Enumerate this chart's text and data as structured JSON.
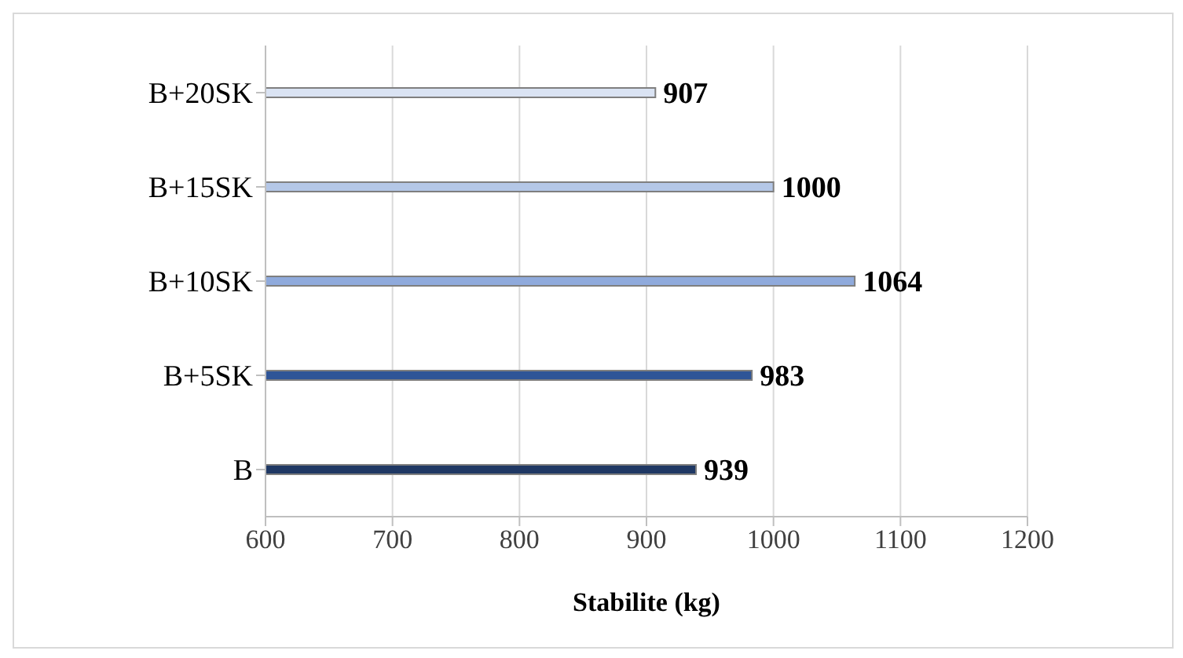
{
  "chart_data": {
    "type": "bar",
    "orientation": "horizontal",
    "categories": [
      "B+20SK",
      "B+15SK",
      "B+10SK",
      "B+5SK",
      "B"
    ],
    "values": [
      907,
      1000,
      1064,
      983,
      939
    ],
    "colors": [
      "#dae3f3",
      "#b4c7e7",
      "#8faadc",
      "#2f5597",
      "#1f3864"
    ],
    "xlim": [
      600,
      1200
    ],
    "xticks": [
      600,
      700,
      800,
      900,
      1000,
      1100,
      1200
    ],
    "xlabel": "Stabilite  (kg)",
    "grid": "x",
    "data_labels": true
  }
}
